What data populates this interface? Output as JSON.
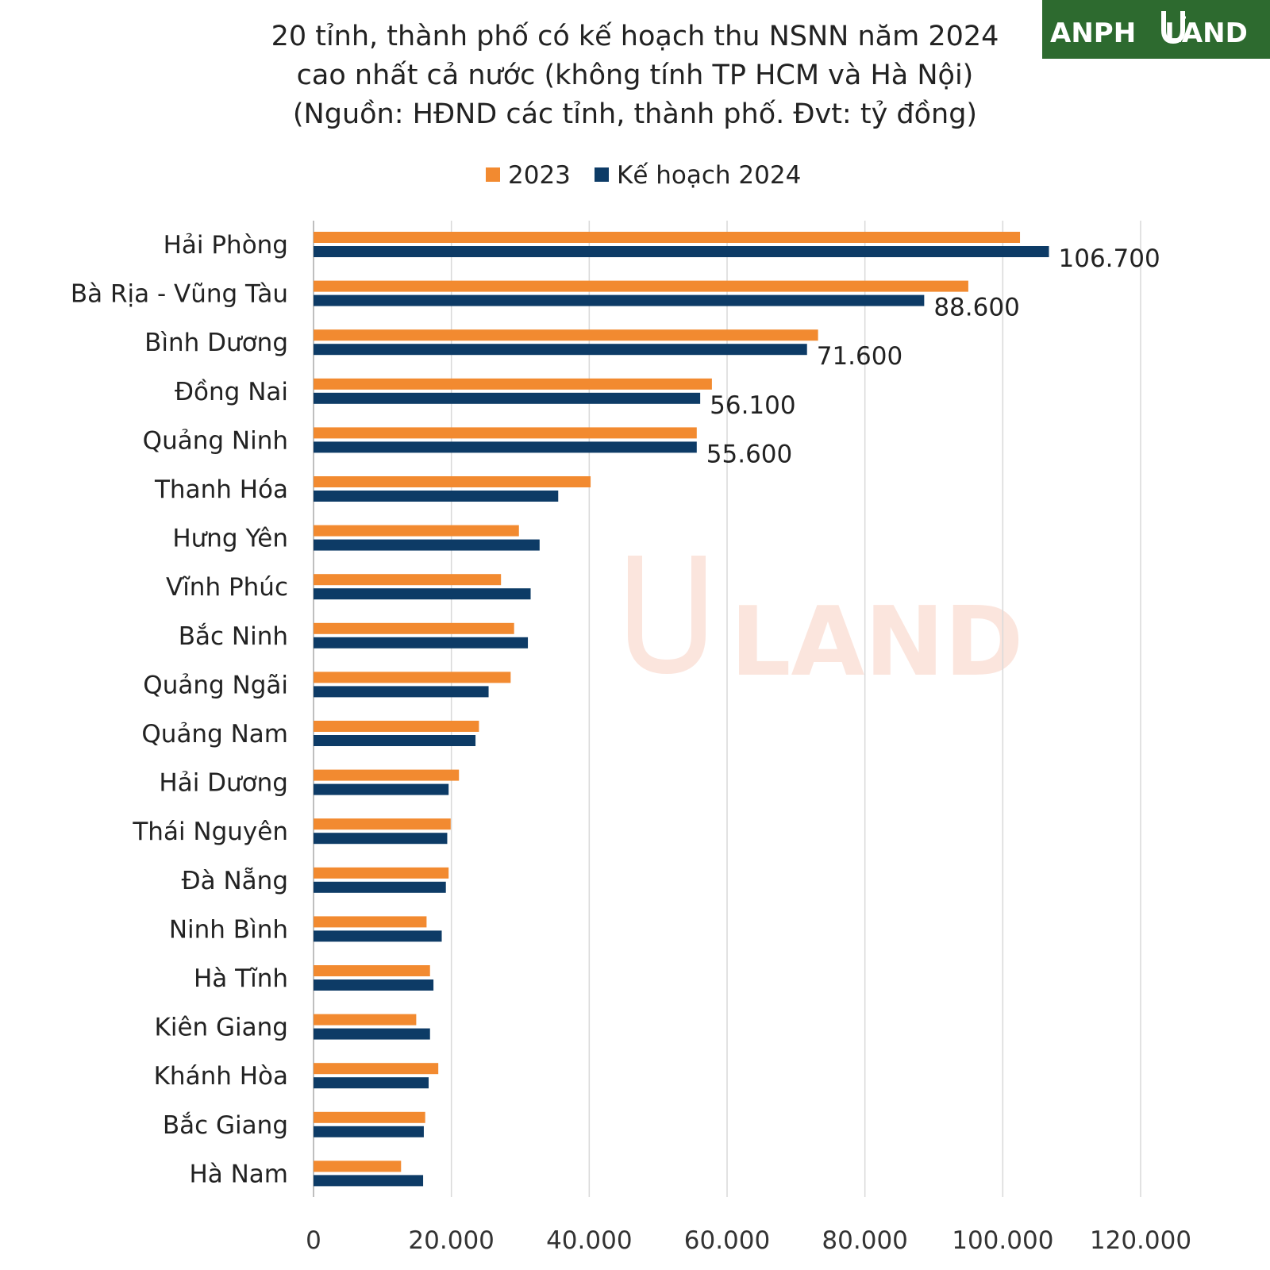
{
  "chart_data": {
    "type": "bar",
    "orientation": "horizontal",
    "title_lines": [
      "20 tỉnh, thành phố có kế hoạch thu NSNN năm 2024",
      "cao nhất cả nước (không tính TP HCM và Hà Nội)",
      "(Nguồn: HĐND các tỉnh, thành phố. Đvt: tỷ đồng)"
    ],
    "legend_position": "top",
    "categories": [
      "Hải Phòng",
      "Bà Rịa - Vũng Tàu",
      "Bình Dương",
      "Đồng Nai",
      "Quảng Ninh",
      "Thanh Hóa",
      "Hưng Yên",
      "Vĩnh Phúc",
      "Bắc Ninh",
      "Quảng Ngãi",
      "Quảng Nam",
      "Hải Dương",
      "Thái Nguyên",
      "Đà Nẵng",
      "Ninh Bình",
      "Hà Tĩnh",
      "Kiên Giang",
      "Khánh Hòa",
      "Bắc Giang",
      "Hà Nam"
    ],
    "series": [
      {
        "name": "2023",
        "color": "#f28a30",
        "values": [
          102500,
          95000,
          73200,
          57800,
          55600,
          40200,
          29800,
          27200,
          29100,
          28600,
          24000,
          21100,
          19900,
          19600,
          16400,
          16900,
          14900,
          18100,
          16200,
          12700
        ]
      },
      {
        "name": "Kế hoạch 2024",
        "color": "#0d3b66",
        "values": [
          106700,
          88600,
          71600,
          56100,
          55600,
          35500,
          32800,
          31500,
          31100,
          25400,
          23500,
          19600,
          19400,
          19200,
          18600,
          17400,
          16900,
          16700,
          16000,
          15900
        ],
        "data_labels": [
          "106.700",
          "88.600",
          "71.600",
          "56.100",
          "55.600",
          "",
          "",
          "",
          "",
          "",
          "",
          "",
          "",
          "",
          "",
          "",
          "",
          "",
          "",
          ""
        ]
      }
    ],
    "xlim": [
      0,
      120000
    ],
    "xticks": [
      0,
      20000,
      40000,
      60000,
      80000,
      100000,
      120000
    ],
    "xtick_labels": [
      "0",
      "20.000",
      "40.000",
      "60.000",
      "80.000",
      "100.000",
      "120.000"
    ],
    "grid": "vertical"
  },
  "logo": {
    "text_left": "ANPH",
    "text_right": "LAND",
    "watermark": "LAND"
  }
}
